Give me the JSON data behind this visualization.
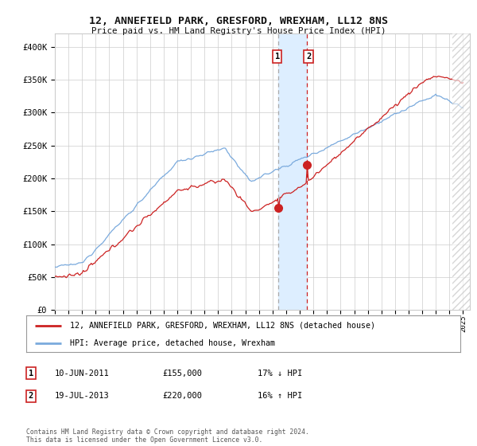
{
  "title": "12, ANNEFIELD PARK, GRESFORD, WREXHAM, LL12 8NS",
  "subtitle": "Price paid vs. HM Land Registry's House Price Index (HPI)",
  "ylim": [
    0,
    420000
  ],
  "yticks": [
    0,
    50000,
    100000,
    150000,
    200000,
    250000,
    300000,
    350000,
    400000
  ],
  "ytick_labels": [
    "£0",
    "£50K",
    "£100K",
    "£150K",
    "£200K",
    "£250K",
    "£300K",
    "£350K",
    "£400K"
  ],
  "hpi_color": "#7aaadd",
  "property_color": "#cc2222",
  "transaction1_date": 2011.44,
  "transaction1_price": 155000,
  "transaction2_date": 2013.54,
  "transaction2_price": 220000,
  "legend_property": "12, ANNEFIELD PARK, GRESFORD, WREXHAM, LL12 8NS (detached house)",
  "legend_hpi": "HPI: Average price, detached house, Wrexham",
  "table_row1": [
    "1",
    "10-JUN-2011",
    "£155,000",
    "17% ↓ HPI"
  ],
  "table_row2": [
    "2",
    "19-JUL-2013",
    "£220,000",
    "16% ↑ HPI"
  ],
  "copyright_text": "Contains HM Land Registry data © Crown copyright and database right 2024.\nThis data is licensed under the Open Government Licence v3.0.",
  "background_color": "#ffffff",
  "grid_color": "#cccccc",
  "shade_color": "#ddeeff"
}
